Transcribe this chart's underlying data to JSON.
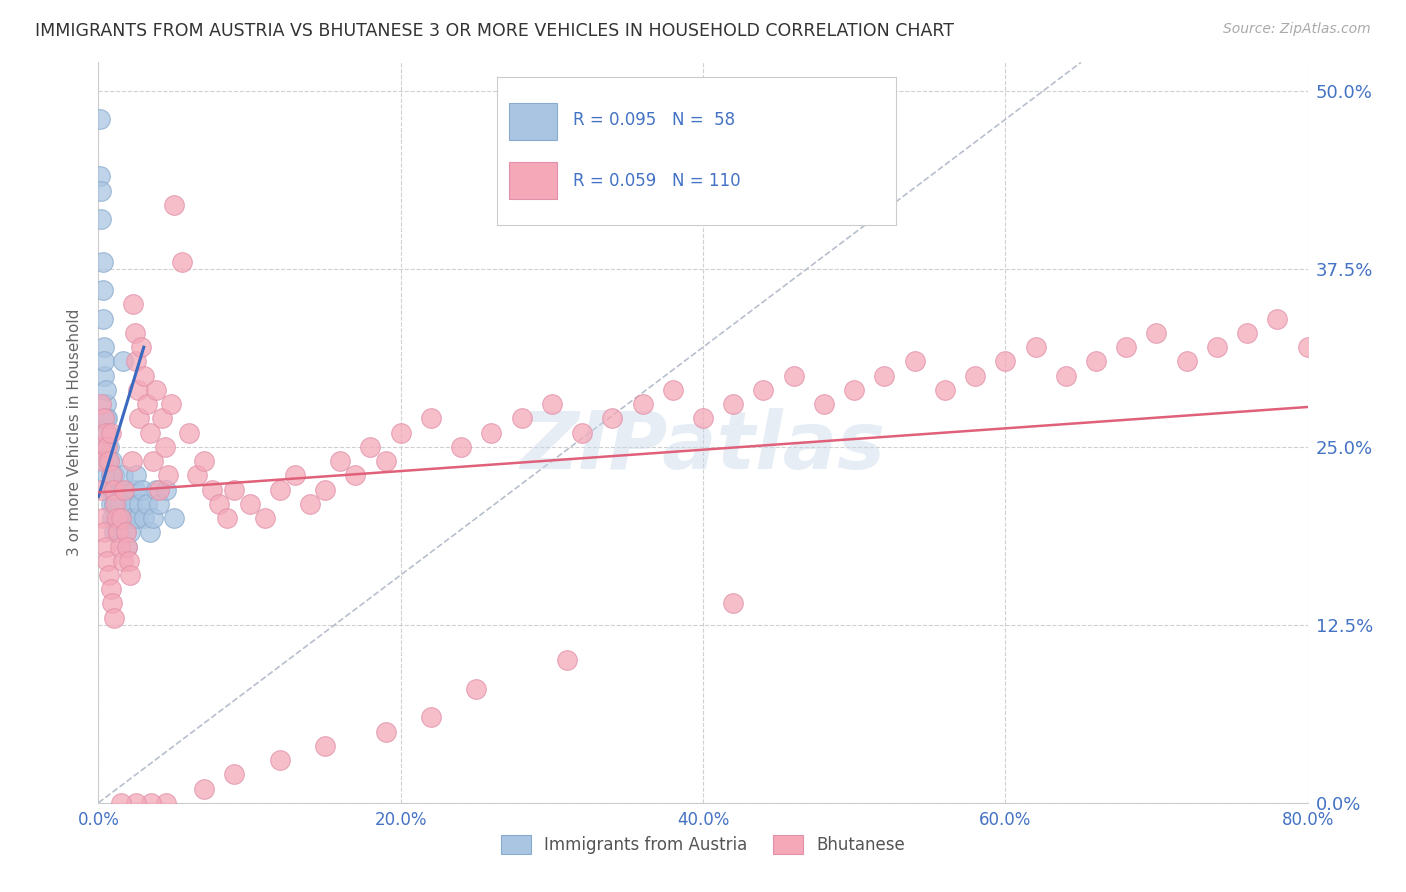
{
  "title": "IMMIGRANTS FROM AUSTRIA VS BHUTANESE 3 OR MORE VEHICLES IN HOUSEHOLD CORRELATION CHART",
  "source": "Source: ZipAtlas.com",
  "ylabel": "3 or more Vehicles in Household",
  "xlim": [
    0.0,
    0.8
  ],
  "ylim": [
    -0.02,
    0.52
  ],
  "austria_R": 0.095,
  "austria_N": 58,
  "bhutan_R": 0.059,
  "bhutan_N": 110,
  "austria_color": "#aac5e2",
  "bhutan_color": "#f4a8b8",
  "austria_line_color": "#3a6abf",
  "bhutan_line_color": "#e0607a",
  "background_color": "#ffffff",
  "grid_color": "#d0d0d0",
  "axis_label_color": "#4472c4",
  "watermark": "ZIPatlas",
  "austria_x": [
    0.001,
    0.001,
    0.002,
    0.002,
    0.003,
    0.003,
    0.003,
    0.004,
    0.004,
    0.004,
    0.005,
    0.005,
    0.005,
    0.005,
    0.006,
    0.006,
    0.006,
    0.006,
    0.007,
    0.007,
    0.007,
    0.008,
    0.008,
    0.009,
    0.009,
    0.009,
    0.01,
    0.01,
    0.01,
    0.011,
    0.011,
    0.012,
    0.012,
    0.013,
    0.014,
    0.015,
    0.016,
    0.016,
    0.017,
    0.018,
    0.019,
    0.02,
    0.021,
    0.022,
    0.023,
    0.024,
    0.025,
    0.026,
    0.027,
    0.029,
    0.03,
    0.032,
    0.034,
    0.036,
    0.038,
    0.04,
    0.045,
    0.05
  ],
  "austria_y": [
    0.44,
    0.48,
    0.41,
    0.43,
    0.38,
    0.36,
    0.34,
    0.32,
    0.3,
    0.31,
    0.28,
    0.27,
    0.25,
    0.29,
    0.24,
    0.26,
    0.23,
    0.27,
    0.22,
    0.24,
    0.25,
    0.21,
    0.23,
    0.2,
    0.22,
    0.24,
    0.19,
    0.21,
    0.23,
    0.2,
    0.22,
    0.19,
    0.21,
    0.2,
    0.21,
    0.22,
    0.23,
    0.31,
    0.2,
    0.19,
    0.18,
    0.2,
    0.19,
    0.21,
    0.2,
    0.22,
    0.23,
    0.2,
    0.21,
    0.22,
    0.2,
    0.21,
    0.19,
    0.2,
    0.22,
    0.21,
    0.22,
    0.2
  ],
  "bhutan_x": [
    0.001,
    0.002,
    0.002,
    0.003,
    0.003,
    0.004,
    0.004,
    0.005,
    0.005,
    0.006,
    0.006,
    0.007,
    0.007,
    0.008,
    0.008,
    0.009,
    0.009,
    0.01,
    0.01,
    0.011,
    0.012,
    0.013,
    0.014,
    0.015,
    0.016,
    0.017,
    0.018,
    0.019,
    0.02,
    0.021,
    0.022,
    0.023,
    0.024,
    0.025,
    0.026,
    0.027,
    0.028,
    0.03,
    0.032,
    0.034,
    0.036,
    0.038,
    0.04,
    0.042,
    0.044,
    0.046,
    0.048,
    0.05,
    0.055,
    0.06,
    0.065,
    0.07,
    0.075,
    0.08,
    0.085,
    0.09,
    0.1,
    0.11,
    0.12,
    0.13,
    0.14,
    0.15,
    0.16,
    0.17,
    0.18,
    0.19,
    0.2,
    0.22,
    0.24,
    0.26,
    0.28,
    0.3,
    0.32,
    0.34,
    0.36,
    0.38,
    0.4,
    0.42,
    0.44,
    0.46,
    0.48,
    0.5,
    0.52,
    0.54,
    0.56,
    0.58,
    0.6,
    0.62,
    0.64,
    0.66,
    0.68,
    0.7,
    0.72,
    0.74,
    0.76,
    0.78,
    0.8,
    0.42,
    0.31,
    0.25,
    0.22,
    0.19,
    0.15,
    0.12,
    0.09,
    0.07,
    0.045,
    0.035,
    0.025,
    0.015
  ],
  "bhutan_y": [
    0.25,
    0.22,
    0.28,
    0.2,
    0.24,
    0.19,
    0.27,
    0.18,
    0.26,
    0.17,
    0.25,
    0.16,
    0.24,
    0.15,
    0.26,
    0.14,
    0.23,
    0.13,
    0.22,
    0.21,
    0.2,
    0.19,
    0.18,
    0.2,
    0.17,
    0.22,
    0.19,
    0.18,
    0.17,
    0.16,
    0.24,
    0.35,
    0.33,
    0.31,
    0.29,
    0.27,
    0.32,
    0.3,
    0.28,
    0.26,
    0.24,
    0.29,
    0.22,
    0.27,
    0.25,
    0.23,
    0.28,
    0.42,
    0.38,
    0.26,
    0.23,
    0.24,
    0.22,
    0.21,
    0.2,
    0.22,
    0.21,
    0.2,
    0.22,
    0.23,
    0.21,
    0.22,
    0.24,
    0.23,
    0.25,
    0.24,
    0.26,
    0.27,
    0.25,
    0.26,
    0.27,
    0.28,
    0.26,
    0.27,
    0.28,
    0.29,
    0.27,
    0.28,
    0.29,
    0.3,
    0.28,
    0.29,
    0.3,
    0.31,
    0.29,
    0.3,
    0.31,
    0.32,
    0.3,
    0.31,
    0.32,
    0.33,
    0.31,
    0.32,
    0.33,
    0.34,
    0.32,
    0.14,
    0.1,
    0.08,
    0.06,
    0.05,
    0.04,
    0.03,
    0.02,
    0.01,
    0.0,
    0.0,
    0.0,
    0.0
  ]
}
